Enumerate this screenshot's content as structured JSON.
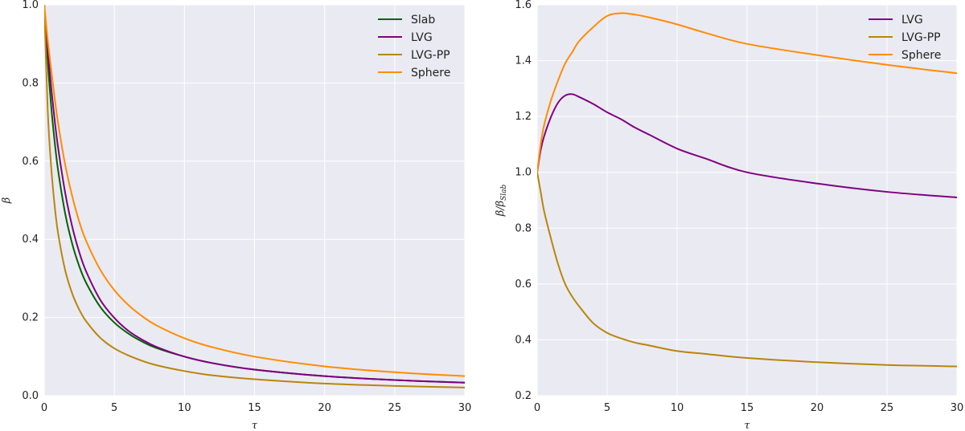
{
  "chart_data": [
    {
      "type": "line",
      "xlabel": "τ",
      "ylabel": "β",
      "xlim": [
        0,
        30
      ],
      "ylim": [
        0,
        1.0
      ],
      "xticks": [
        0,
        5,
        10,
        15,
        20,
        25,
        30
      ],
      "yticks": [
        0.0,
        0.2,
        0.4,
        0.6,
        0.8,
        1.0
      ],
      "xtick_labels": [
        "0",
        "5",
        "10",
        "15",
        "20",
        "25",
        "30"
      ],
      "ytick_labels": [
        "0.0",
        "0.2",
        "0.4",
        "0.6",
        "0.8",
        "1.0"
      ],
      "legend_position": "top-right",
      "grid": true,
      "x": [
        0,
        0.25,
        0.5,
        0.75,
        1,
        1.5,
        2,
        2.5,
        3,
        4,
        5,
        6,
        7,
        8,
        10,
        12,
        15,
        20,
        25,
        30
      ],
      "series": [
        {
          "name": "Slab",
          "color": "#006400",
          "values": [
            1.0,
            0.854,
            0.739,
            0.648,
            0.574,
            0.465,
            0.388,
            0.331,
            0.288,
            0.227,
            0.187,
            0.159,
            0.138,
            0.122,
            0.1,
            0.0833,
            0.0667,
            0.05,
            0.04,
            0.0333
          ]
        },
        {
          "name": "LVG",
          "color": "#800080",
          "values": [
            1.0,
            0.885,
            0.787,
            0.703,
            0.632,
            0.518,
            0.432,
            0.367,
            0.317,
            0.245,
            0.199,
            0.166,
            0.143,
            0.125,
            0.1,
            0.0833,
            0.0667,
            0.05,
            0.04,
            0.0333
          ]
        },
        {
          "name": "LVG-PP",
          "color": "#b8860b",
          "values": [
            1.0,
            0.73,
            0.583,
            0.484,
            0.413,
            0.32,
            0.261,
            0.22,
            0.19,
            0.148,
            0.121,
            0.103,
            0.089,
            0.078,
            0.063,
            0.052,
            0.042,
            0.031,
            0.025,
            0.0208
          ]
        },
        {
          "name": "Sphere",
          "color": "#ff8c00",
          "values": [
            1.0,
            0.91,
            0.833,
            0.76,
            0.695,
            0.59,
            0.51,
            0.445,
            0.395,
            0.322,
            0.27,
            0.232,
            0.203,
            0.18,
            0.147,
            0.124,
            0.1,
            0.075,
            0.06,
            0.05
          ]
        }
      ]
    },
    {
      "type": "line",
      "xlabel": "τ",
      "ylabel": "β/β_Slab",
      "ylabel_main": "β/β",
      "ylabel_sub": "Slab",
      "xlim": [
        0,
        30
      ],
      "ylim": [
        0.2,
        1.6
      ],
      "xticks": [
        0,
        5,
        10,
        15,
        20,
        25,
        30
      ],
      "yticks": [
        0.2,
        0.4,
        0.6,
        0.8,
        1.0,
        1.2,
        1.4,
        1.6
      ],
      "xtick_labels": [
        "0",
        "5",
        "10",
        "15",
        "20",
        "25",
        "30"
      ],
      "ytick_labels": [
        "0.2",
        "0.4",
        "0.6",
        "0.8",
        "1.0",
        "1.2",
        "1.4",
        "1.6"
      ],
      "legend_position": "top-right",
      "grid": true,
      "x": [
        0,
        0.25,
        0.5,
        1,
        1.5,
        2,
        2.5,
        3,
        4,
        5,
        6,
        7,
        8,
        10,
        12,
        15,
        20,
        25,
        30
      ],
      "series": [
        {
          "name": "LVG",
          "color": "#800080",
          "values": [
            1.0,
            1.08,
            1.13,
            1.2,
            1.25,
            1.275,
            1.28,
            1.27,
            1.245,
            1.215,
            1.19,
            1.16,
            1.135,
            1.085,
            1.05,
            1.0,
            0.96,
            0.93,
            0.91
          ]
        },
        {
          "name": "LVG-PP",
          "color": "#b8860b",
          "values": [
            1.0,
            0.93,
            0.86,
            0.76,
            0.67,
            0.6,
            0.555,
            0.52,
            0.46,
            0.425,
            0.405,
            0.39,
            0.38,
            0.36,
            0.35,
            0.335,
            0.32,
            0.31,
            0.305
          ]
        },
        {
          "name": "Sphere",
          "color": "#ff8c00",
          "values": [
            1.0,
            1.1,
            1.17,
            1.26,
            1.33,
            1.39,
            1.43,
            1.47,
            1.52,
            1.56,
            1.57,
            1.565,
            1.555,
            1.53,
            1.5,
            1.46,
            1.42,
            1.385,
            1.355
          ]
        }
      ]
    }
  ]
}
